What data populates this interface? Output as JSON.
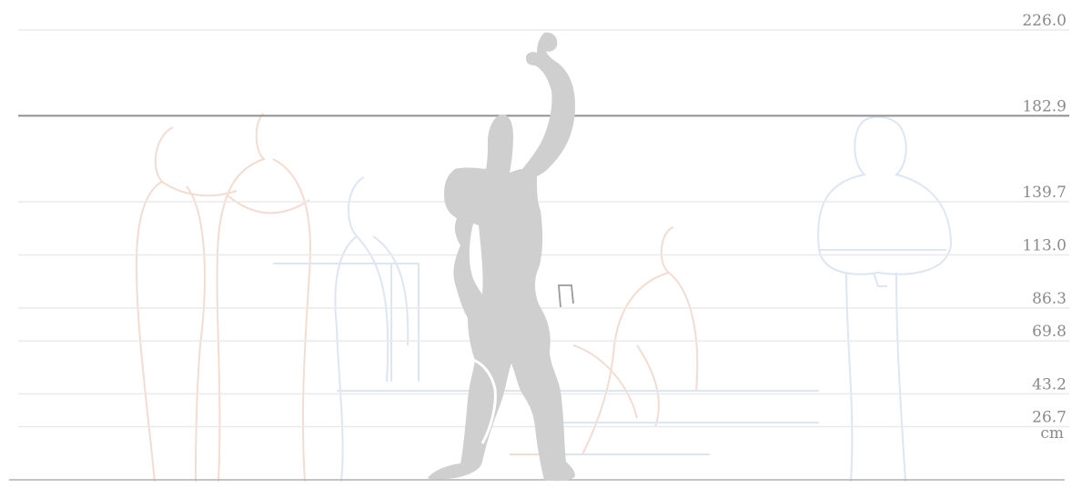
{
  "measurements": [
    {
      "value": "226.0",
      "height": 226.0
    },
    {
      "value": "182.9",
      "height": 182.9,
      "emphasis": true
    },
    {
      "value": "139.7",
      "height": 139.7
    },
    {
      "value": "113.0",
      "height": 113.0
    },
    {
      "value": "86.3",
      "height": 86.3
    },
    {
      "value": "69.8",
      "height": 69.8
    },
    {
      "value": "43.2",
      "height": 43.2
    },
    {
      "value": "26.7",
      "height": 26.7
    }
  ],
  "unit": "cm",
  "colors": {
    "figure": "#cfcfcf",
    "guide": "#eaeaea",
    "strong_guide": "#8f8f8f",
    "ground": "#b0b0b0",
    "label": "#8a8a8a",
    "sketch_warm": "#f3dcd2",
    "sketch_cool": "#dde6f2"
  }
}
